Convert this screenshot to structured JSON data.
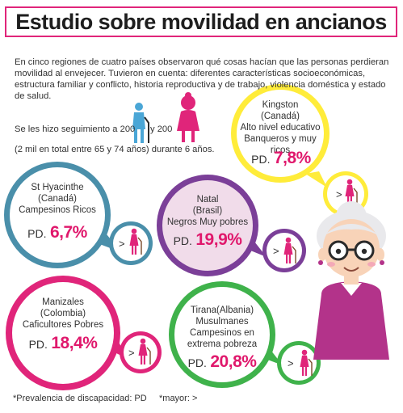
{
  "title": "Estudio sobre movilidad en ancianos",
  "intro": "En cinco regiones de cuatro países observaron qué cosas hacían que las personas perdieran movilidad al  envejecer. Tuvieron en cuenta: diferentes características socioeconómicas, estructura familiar  y conflicto, historia reproductiva y  de trabajo, violencia doméstica y estado de salud.",
  "followup": {
    "line1_a": "Se les hizo seguimiento a 200",
    "line1_b": "y 200",
    "line2": "(2 mil en total entre 65 y 74 años) durante  6 años."
  },
  "pd_label": "PD.",
  "greater_symbol": ">",
  "regions": [
    {
      "name": "Kingston",
      "country": "(Canadá)",
      "desc": [
        "Alto nivel educativo",
        "Banqueros y muy ricos"
      ],
      "pd": "7,8%",
      "color": "#ffec3a"
    },
    {
      "name": "St Hyacinthe",
      "country": "(Canadá)",
      "desc": [
        "Campesinos Ricos"
      ],
      "pd": "6,7%",
      "color": "#4a8faa"
    },
    {
      "name": "Natal",
      "country": "(Brasil)",
      "desc": [
        "Negros  Muy pobres"
      ],
      "pd": "19,9%",
      "color": "#7b3f98"
    },
    {
      "name": "Manizales",
      "country": "(Colombia)",
      "desc": [
        "Caficultores Pobres"
      ],
      "pd": "18,4%",
      "color": "#e0257a"
    },
    {
      "name": "Tirana(Albania)",
      "country": "Musulmanes",
      "desc": [
        "Campesinos en",
        "extrema pobreza"
      ],
      "pd": "20,8%",
      "color": "#3fb24b"
    }
  ],
  "footnote": {
    "pd": "*Prevalencia de discapacidad:  PD",
    "mayor": "*mayor:  >"
  },
  "colors": {
    "accent": "#e0186c",
    "man": "#4aa6d6",
    "woman": "#e0257a"
  }
}
